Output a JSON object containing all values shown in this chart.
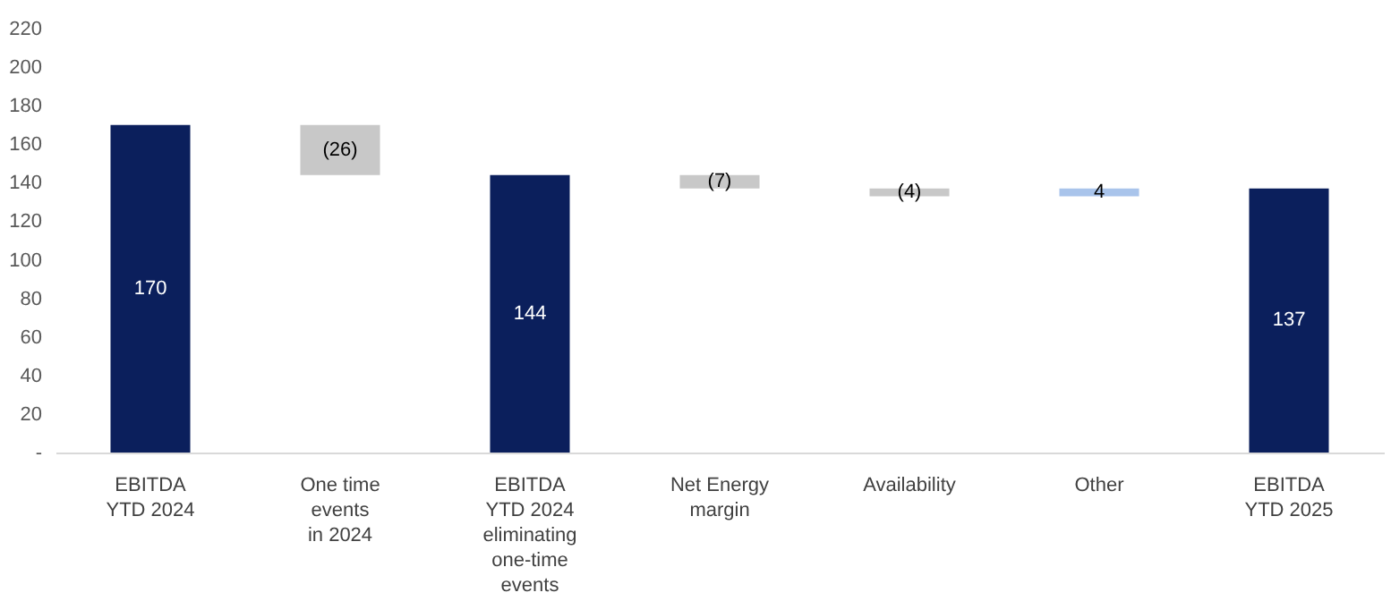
{
  "chart_data": {
    "type": "bar",
    "categories": [
      "EBITDA\nYTD 2024",
      "One time\nevents\nin 2024",
      "EBITDA\nYTD 2024\neliminating\none-time\nevents",
      "Net Energy\nmargin",
      "Availability",
      "Other",
      "EBITDA\nYTD 2025"
    ],
    "values": [
      170,
      -26,
      144,
      -7,
      -4,
      4,
      137
    ],
    "base": [
      0,
      170,
      0,
      144,
      137,
      133,
      0
    ],
    "colors": [
      "#0b1f5c",
      "#c8c8c8",
      "#0b1f5c",
      "#c8c8c8",
      "#c8c8c8",
      "#a9c4eb",
      "#0b1f5c"
    ],
    "value_labels": [
      "170",
      "(26)",
      "144",
      "(7)",
      "(4)",
      "4",
      "137"
    ],
    "ylim": [
      0,
      220
    ],
    "yticks": [
      {
        "value": 0,
        "label": "-"
      },
      20,
      40,
      60,
      80,
      100,
      120,
      140,
      160,
      180,
      200,
      220
    ],
    "grid": false
  }
}
